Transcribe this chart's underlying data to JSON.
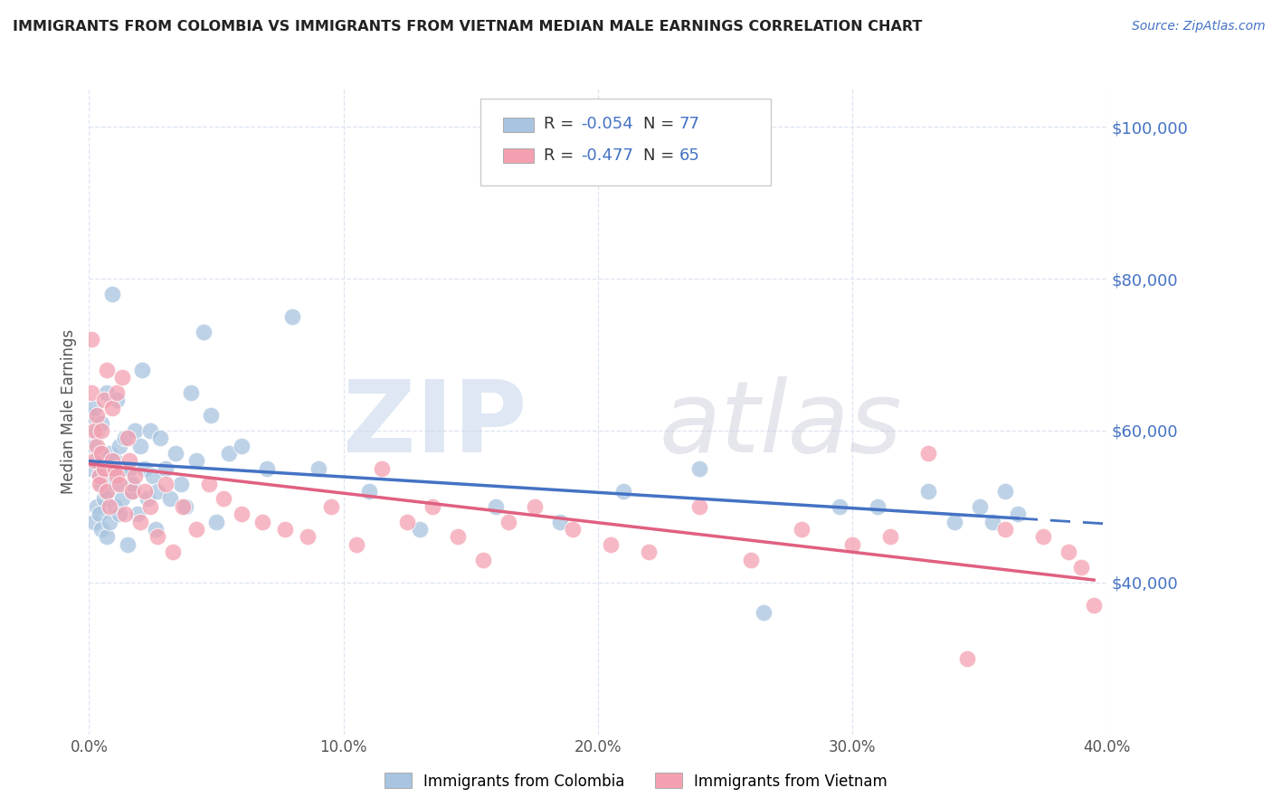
{
  "title": "IMMIGRANTS FROM COLOMBIA VS IMMIGRANTS FROM VIETNAM MEDIAN MALE EARNINGS CORRELATION CHART",
  "source": "Source: ZipAtlas.com",
  "ylabel": "Median Male Earnings",
  "legend_label1": "Immigrants from Colombia",
  "legend_label2": "Immigrants from Vietnam",
  "r1": -0.054,
  "n1": 77,
  "r2": -0.477,
  "n2": 65,
  "color1": "#a8c4e0",
  "color2": "#f4a0b0",
  "line_color1": "#4472c4",
  "line_color2": "#e06080",
  "background_color": "#ffffff",
  "grid_color": "#dce4f0",
  "xlim": [
    0.0,
    0.4
  ],
  "ylim": [
    20000,
    105000
  ],
  "yticks": [
    40000,
    60000,
    80000,
    100000
  ],
  "xticks": [
    0.0,
    0.1,
    0.2,
    0.3,
    0.4
  ],
  "colombia_x": [
    0.001,
    0.001,
    0.002,
    0.002,
    0.002,
    0.003,
    0.003,
    0.003,
    0.004,
    0.004,
    0.004,
    0.005,
    0.005,
    0.005,
    0.006,
    0.006,
    0.007,
    0.007,
    0.007,
    0.008,
    0.008,
    0.009,
    0.009,
    0.01,
    0.01,
    0.011,
    0.011,
    0.012,
    0.012,
    0.013,
    0.013,
    0.014,
    0.015,
    0.016,
    0.017,
    0.017,
    0.018,
    0.019,
    0.02,
    0.021,
    0.022,
    0.023,
    0.024,
    0.025,
    0.026,
    0.027,
    0.028,
    0.03,
    0.032,
    0.034,
    0.036,
    0.038,
    0.04,
    0.042,
    0.045,
    0.048,
    0.05,
    0.055,
    0.06,
    0.07,
    0.08,
    0.09,
    0.11,
    0.13,
    0.16,
    0.185,
    0.21,
    0.24,
    0.265,
    0.295,
    0.31,
    0.33,
    0.34,
    0.35,
    0.355,
    0.36,
    0.365
  ],
  "colombia_y": [
    55000,
    62000,
    58000,
    48000,
    63000,
    56000,
    60000,
    50000,
    54000,
    49000,
    57000,
    53000,
    61000,
    47000,
    55000,
    51000,
    65000,
    46000,
    52000,
    48000,
    57000,
    54000,
    78000,
    50000,
    56000,
    53000,
    64000,
    49000,
    58000,
    55000,
    51000,
    59000,
    45000,
    55000,
    52000,
    53000,
    60000,
    49000,
    58000,
    68000,
    55000,
    51000,
    60000,
    54000,
    47000,
    52000,
    59000,
    55000,
    51000,
    57000,
    53000,
    50000,
    65000,
    56000,
    73000,
    62000,
    48000,
    57000,
    58000,
    55000,
    75000,
    55000,
    52000,
    47000,
    50000,
    48000,
    52000,
    55000,
    36000,
    50000,
    50000,
    52000,
    48000,
    50000,
    48000,
    52000,
    49000
  ],
  "vietnam_x": [
    0.001,
    0.001,
    0.002,
    0.002,
    0.003,
    0.003,
    0.004,
    0.004,
    0.005,
    0.005,
    0.006,
    0.006,
    0.007,
    0.007,
    0.008,
    0.009,
    0.009,
    0.01,
    0.011,
    0.011,
    0.012,
    0.013,
    0.014,
    0.015,
    0.016,
    0.017,
    0.018,
    0.02,
    0.022,
    0.024,
    0.027,
    0.03,
    0.033,
    0.037,
    0.042,
    0.047,
    0.053,
    0.06,
    0.068,
    0.077,
    0.086,
    0.095,
    0.105,
    0.115,
    0.125,
    0.135,
    0.145,
    0.155,
    0.165,
    0.175,
    0.19,
    0.205,
    0.22,
    0.24,
    0.26,
    0.28,
    0.3,
    0.315,
    0.33,
    0.345,
    0.36,
    0.375,
    0.385,
    0.39,
    0.395
  ],
  "vietnam_y": [
    65000,
    72000,
    60000,
    56000,
    58000,
    62000,
    54000,
    53000,
    60000,
    57000,
    55000,
    64000,
    52000,
    68000,
    50000,
    63000,
    56000,
    55000,
    65000,
    54000,
    53000,
    67000,
    49000,
    59000,
    56000,
    52000,
    54000,
    48000,
    52000,
    50000,
    46000,
    53000,
    44000,
    50000,
    47000,
    53000,
    51000,
    49000,
    48000,
    47000,
    46000,
    50000,
    45000,
    55000,
    48000,
    50000,
    46000,
    43000,
    48000,
    50000,
    47000,
    45000,
    44000,
    50000,
    43000,
    47000,
    45000,
    46000,
    57000,
    30000,
    47000,
    46000,
    44000,
    42000,
    37000
  ]
}
